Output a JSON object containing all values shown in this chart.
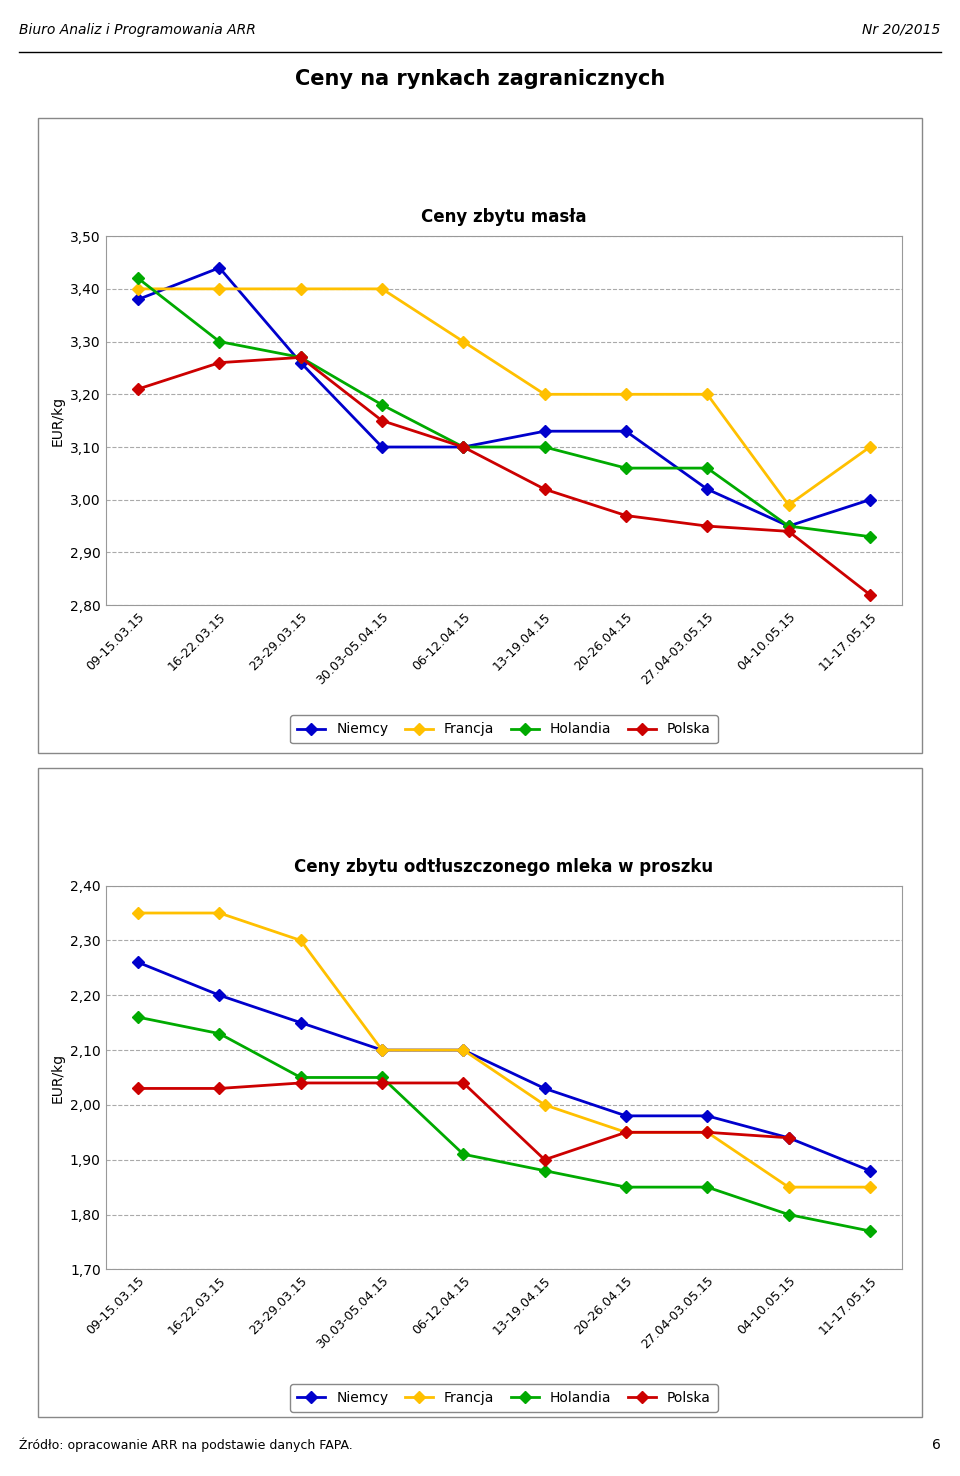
{
  "header_left": "Biuro Analiz i Programowania ARR",
  "header_right": "Nr 20/2015",
  "main_title": "Ceny na rynkach zagranicznych",
  "footer": "Źródło: opracowanie ARR na podstawie danych FAPA.",
  "page_number": "6",
  "chart1_title": "Ceny zbytu masła",
  "chart1_ylabel": "EUR/kg",
  "chart1_ylim": [
    2.8,
    3.5
  ],
  "chart1_yticks": [
    2.8,
    2.9,
    3.0,
    3.1,
    3.2,
    3.3,
    3.4,
    3.5
  ],
  "chart1_data": {
    "Niemcy": [
      3.38,
      3.44,
      3.26,
      3.1,
      3.1,
      3.13,
      3.13,
      3.02,
      2.95,
      3.0
    ],
    "Francja": [
      3.4,
      3.4,
      3.4,
      3.4,
      3.3,
      3.2,
      3.2,
      3.2,
      2.99,
      3.1
    ],
    "Holandia": [
      3.42,
      3.3,
      3.27,
      3.18,
      3.1,
      3.1,
      3.06,
      3.06,
      2.95,
      2.93
    ],
    "Polska": [
      3.21,
      3.26,
      3.27,
      3.15,
      3.1,
      3.02,
      2.97,
      2.95,
      2.94,
      2.82
    ]
  },
  "chart2_title": "Ceny zbytu odtłuszczonego mleka w proszku",
  "chart2_ylabel": "EUR/kg",
  "chart2_ylim": [
    1.7,
    2.4
  ],
  "chart2_yticks": [
    1.7,
    1.8,
    1.9,
    2.0,
    2.1,
    2.2,
    2.3,
    2.4
  ],
  "chart2_data": {
    "Niemcy": [
      2.26,
      2.2,
      2.15,
      2.1,
      2.1,
      2.03,
      1.98,
      1.98,
      1.94,
      1.88
    ],
    "Francja": [
      2.35,
      2.35,
      2.3,
      2.1,
      2.1,
      2.0,
      1.95,
      1.95,
      1.85,
      1.85
    ],
    "Holandia": [
      2.16,
      2.13,
      2.05,
      2.05,
      1.91,
      1.88,
      1.85,
      1.85,
      1.8,
      1.77
    ],
    "Polska": [
      2.03,
      2.03,
      2.04,
      2.04,
      2.04,
      1.9,
      1.95,
      1.95,
      1.94,
      null
    ]
  },
  "x_labels": [
    "09-15.03.15",
    "16-22.03.15",
    "23-29.03.15",
    "30.03-05.04.15",
    "06-12.04.15",
    "13-19.04.15",
    "20-26.04.15",
    "27.04-03.05.15",
    "04-10.05.15",
    "11-17.05.15"
  ],
  "colors": {
    "Niemcy": "#0000CC",
    "Francja": "#FFC000",
    "Holandia": "#00AA00",
    "Polska": "#CC0000"
  },
  "legend_order": [
    "Niemcy",
    "Francja",
    "Holandia",
    "Polska"
  ],
  "marker": "D",
  "linewidth": 2.0,
  "markersize": 6
}
